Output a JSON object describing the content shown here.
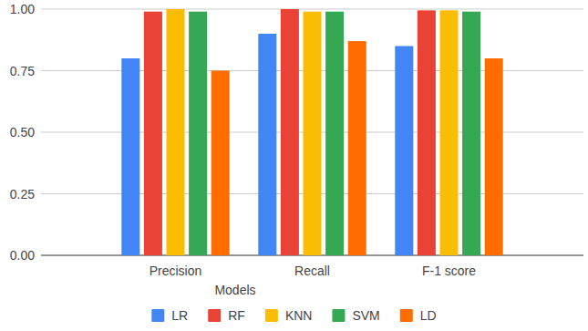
{
  "chart_data": {
    "type": "bar",
    "x_label": "Models",
    "categories": [
      "Precision",
      "Recall",
      "F-1 score"
    ],
    "series": [
      {
        "name": "LR",
        "color": "#4285f4",
        "values": [
          0.8,
          0.9,
          0.85
        ]
      },
      {
        "name": "RF",
        "color": "#ea4335",
        "values": [
          0.99,
          1.0,
          0.995
        ]
      },
      {
        "name": "KNN",
        "color": "#fbbc04",
        "values": [
          1.0,
          0.99,
          0.995
        ]
      },
      {
        "name": "SVM",
        "color": "#34a853",
        "values": [
          0.99,
          0.99,
          0.99
        ]
      },
      {
        "name": "LD",
        "color": "#ff6d01",
        "values": [
          0.75,
          0.87,
          0.8
        ]
      }
    ],
    "ylim": [
      0,
      1
    ],
    "yticks": [
      {
        "value": 0,
        "label": "0.00"
      },
      {
        "value": 0.25,
        "label": "0.25"
      },
      {
        "value": 0.5,
        "label": "0.50"
      },
      {
        "value": 0.75,
        "label": "0.75"
      },
      {
        "value": 1,
        "label": "1.00"
      }
    ],
    "grid": true,
    "legend": "bottom"
  }
}
